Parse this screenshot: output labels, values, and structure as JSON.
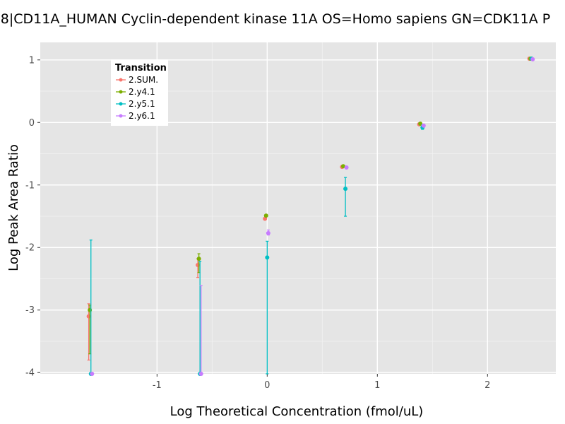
{
  "chart_data": {
    "type": "scatter",
    "title": "8|CD11A_HUMAN Cyclin-dependent kinase 11A OS=Homo sapiens GN=CDK11A P",
    "xlabel": "Log Theoretical Concentration (fmol/uL)",
    "ylabel": "Log Peak Area Ratio",
    "xlim": [
      -2.06,
      2.62
    ],
    "ylim": [
      -4.02,
      1.28
    ],
    "x_ticks": [
      -1,
      0,
      1,
      2
    ],
    "x_tick_labels": [
      "-1",
      "0",
      "1",
      "2"
    ],
    "y_ticks": [
      -4,
      -3,
      -2,
      -1,
      0,
      1
    ],
    "y_tick_labels": [
      "-4",
      "-3",
      "-2",
      "-1",
      "0",
      "1"
    ],
    "grid": true,
    "background": "#e5e5e5",
    "legend": {
      "title": "Transition",
      "position": "top-left",
      "entries": [
        "2.SUM.",
        "2.y4.1",
        "2.y5.1",
        "2.y6.1"
      ]
    },
    "series": [
      {
        "name": "2.SUM.",
        "color": "#f8766d",
        "points": [
          {
            "x": -1.62,
            "y": -3.1,
            "ymin": -3.8,
            "ymax": -2.9
          },
          {
            "x": -0.63,
            "y": -2.28,
            "ymin": -2.48,
            "ymax": -2.18
          },
          {
            "x": -0.02,
            "y": -1.54,
            "ymin": -1.54,
            "ymax": -1.54
          },
          {
            "x": 0.68,
            "y": -0.71,
            "ymin": -0.71,
            "ymax": -0.71
          },
          {
            "x": 1.38,
            "y": -0.03,
            "ymin": -0.03,
            "ymax": -0.03
          },
          {
            "x": 2.38,
            "y": 1.02,
            "ymin": 1.02,
            "ymax": 1.02
          }
        ]
      },
      {
        "name": "2.y4.1",
        "color": "#7cae00",
        "points": [
          {
            "x": -1.61,
            "y": -3.0,
            "ymin": -3.7,
            "ymax": -2.92
          },
          {
            "x": -0.62,
            "y": -2.18,
            "ymin": -2.4,
            "ymax": -2.1
          },
          {
            "x": -0.01,
            "y": -1.49,
            "ymin": -1.49,
            "ymax": -1.49
          },
          {
            "x": 0.69,
            "y": -0.7,
            "ymin": -0.7,
            "ymax": -0.7
          },
          {
            "x": 1.39,
            "y": -0.02,
            "ymin": -0.02,
            "ymax": -0.02
          },
          {
            "x": 2.39,
            "y": 1.02,
            "ymin": 1.02,
            "ymax": 1.02
          }
        ]
      },
      {
        "name": "2.y5.1",
        "color": "#00bfc4",
        "points": [
          {
            "x": -1.6,
            "y": -4.02,
            "ymin": -4.02,
            "ymax": -1.88
          },
          {
            "x": -0.61,
            "y": -4.02,
            "ymin": -4.02,
            "ymax": -2.22
          },
          {
            "x": 0.0,
            "y": -2.16,
            "ymin": -4.02,
            "ymax": -1.9
          },
          {
            "x": 0.71,
            "y": -1.06,
            "ymin": -1.5,
            "ymax": -0.88
          },
          {
            "x": 1.41,
            "y": -0.08,
            "ymin": -0.11,
            "ymax": -0.04
          },
          {
            "x": 2.4,
            "y": 1.02,
            "ymin": 1.02,
            "ymax": 1.02
          }
        ]
      },
      {
        "name": "2.y6.1",
        "color": "#c77cff",
        "points": [
          {
            "x": -1.59,
            "y": -4.02,
            "ymin": -4.02,
            "ymax": -4.02
          },
          {
            "x": -0.6,
            "y": -4.02,
            "ymin": -4.02,
            "ymax": -2.61
          },
          {
            "x": 0.01,
            "y": -1.77,
            "ymin": -1.8,
            "ymax": -1.72
          },
          {
            "x": 0.72,
            "y": -0.72,
            "ymin": -0.72,
            "ymax": -0.72
          },
          {
            "x": 1.42,
            "y": -0.05,
            "ymin": -0.05,
            "ymax": -0.05
          },
          {
            "x": 2.41,
            "y": 1.01,
            "ymin": 1.01,
            "ymax": 1.01
          }
        ]
      }
    ]
  }
}
